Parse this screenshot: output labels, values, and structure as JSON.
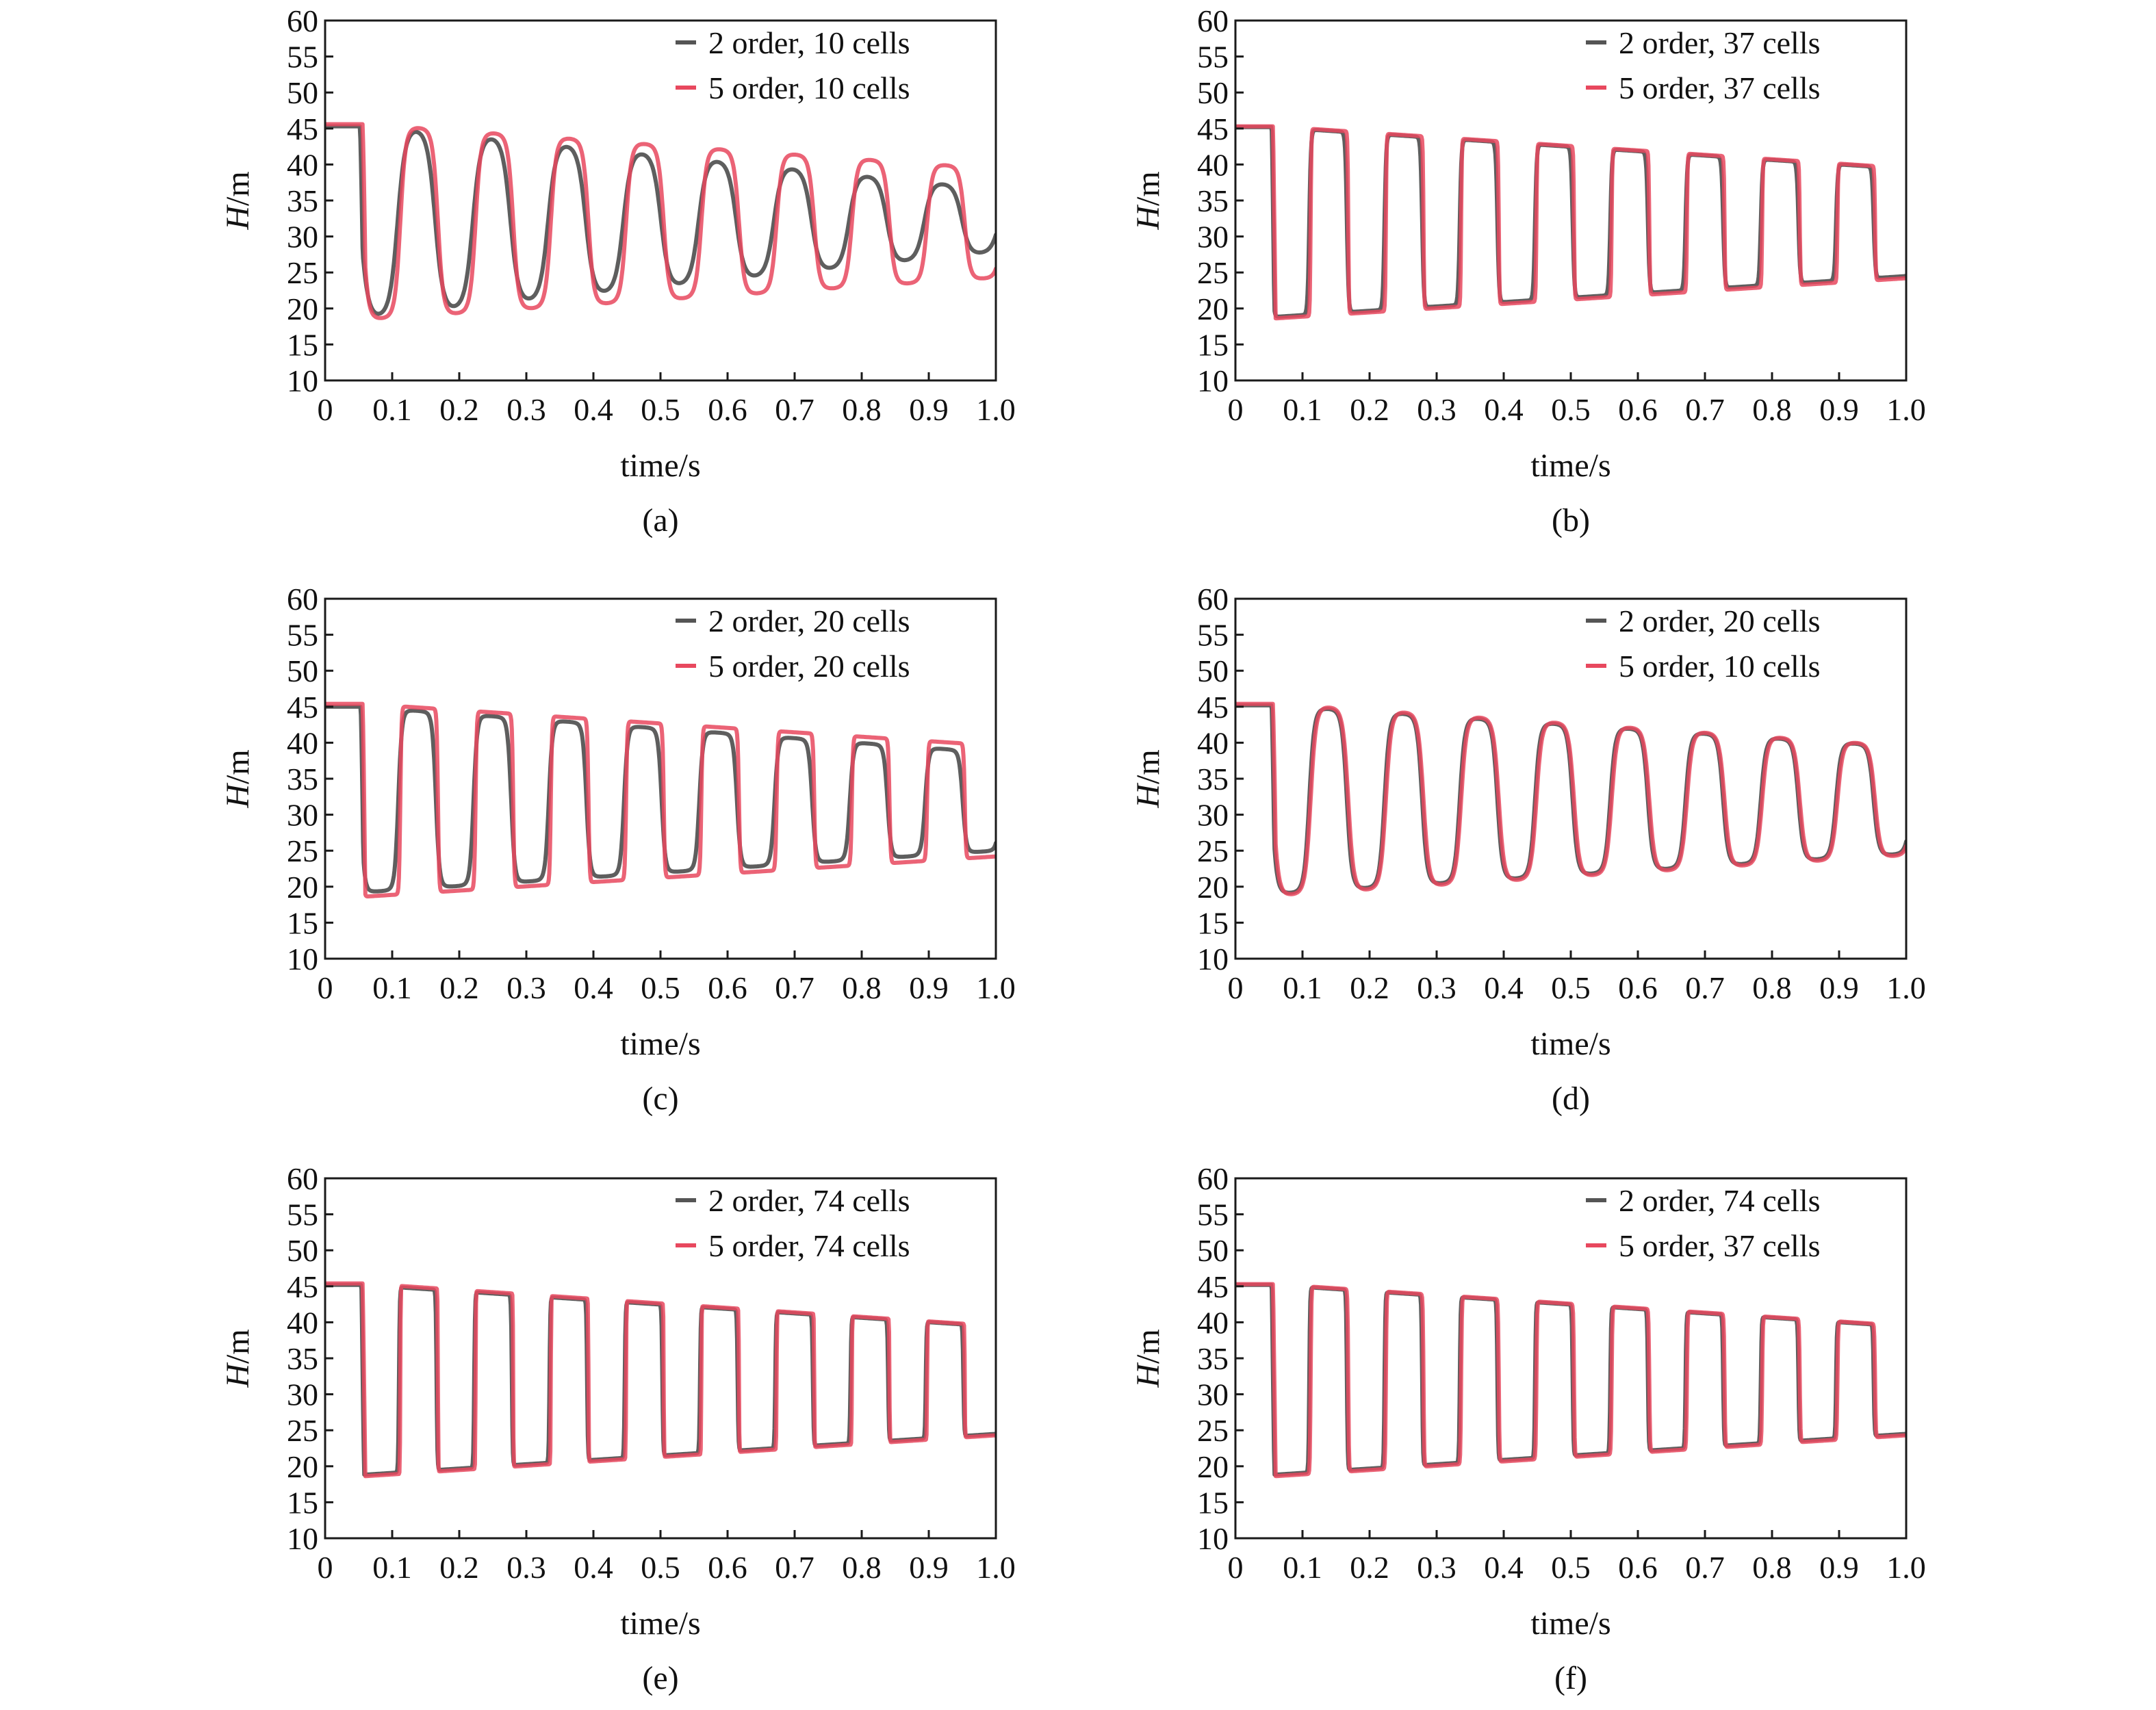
{
  "figure": {
    "colors": {
      "order2": "#555555",
      "order5": "#e8485e"
    }
  },
  "chart_data": [
    {
      "panel": "(a)",
      "type": "line",
      "xlabel": "time/s",
      "ylabel_italic": "H",
      "ylabel_rest": "/m",
      "xlim": [
        0,
        1.0
      ],
      "ylim": [
        10,
        60
      ],
      "xticks": [
        "0",
        "0.1",
        "0.2",
        "0.3",
        "0.4",
        "0.5",
        "0.6",
        "0.7",
        "0.8",
        "0.9",
        "1.0"
      ],
      "yticks": [
        "10",
        "15",
        "20",
        "25",
        "30",
        "35",
        "40",
        "45",
        "50",
        "55",
        "60"
      ],
      "grid": false,
      "legend_position": "top-right",
      "series": [
        {
          "name": "2 order, 10 cells",
          "color": "#555555",
          "smooth": 0.7,
          "period": 0.1122,
          "peak_start": 45.3,
          "peak_end": 36.5,
          "trough_start": 19.0,
          "trough_end": 28.0,
          "lead": 0.004
        },
        {
          "name": "5 order, 10 cells",
          "color": "#e8485e",
          "smooth": 0.45,
          "period": 0.1122,
          "peak_start": 45.6,
          "peak_end": 39.4,
          "trough_start": 18.5,
          "trough_end": 24.3,
          "lead": 0.0
        }
      ]
    },
    {
      "panel": "(b)",
      "type": "line",
      "xlabel": "time/s",
      "ylabel_italic": "H",
      "ylabel_rest": "/m",
      "xlim": [
        0,
        1.0
      ],
      "ylim": [
        10,
        60
      ],
      "xticks": [
        "0",
        "0.1",
        "0.2",
        "0.3",
        "0.4",
        "0.5",
        "0.6",
        "0.7",
        "0.8",
        "0.9",
        "1.0"
      ],
      "yticks": [
        "10",
        "15",
        "20",
        "25",
        "30",
        "35",
        "40",
        "45",
        "50",
        "55",
        "60"
      ],
      "grid": false,
      "legend_position": "top-right",
      "series": [
        {
          "name": "2 order, 37 cells",
          "color": "#555555",
          "smooth": 0.14,
          "period": 0.1122,
          "peak_start": 45.2,
          "peak_end": 39.4,
          "trough_start": 18.8,
          "trough_end": 24.5,
          "lead": 0.002
        },
        {
          "name": "5 order, 37 cells",
          "color": "#e8485e",
          "smooth": 0.06,
          "period": 0.1122,
          "peak_start": 45.3,
          "peak_end": 39.5,
          "trough_start": 18.6,
          "trough_end": 24.2,
          "lead": 0.0
        }
      ]
    },
    {
      "panel": "(c)",
      "type": "line",
      "xlabel": "time/s",
      "ylabel_italic": "H",
      "ylabel_rest": "/m",
      "xlim": [
        0,
        1.0
      ],
      "ylim": [
        10,
        60
      ],
      "xticks": [
        "0",
        "0.1",
        "0.2",
        "0.3",
        "0.4",
        "0.5",
        "0.6",
        "0.7",
        "0.8",
        "0.9",
        "1.0"
      ],
      "yticks": [
        "10",
        "15",
        "20",
        "25",
        "30",
        "35",
        "40",
        "45",
        "50",
        "55",
        "60"
      ],
      "grid": false,
      "legend_position": "top-right",
      "series": [
        {
          "name": "2 order, 20 cells",
          "color": "#555555",
          "smooth": 0.3,
          "period": 0.1122,
          "peak_start": 45.0,
          "peak_end": 38.6,
          "trough_start": 19.2,
          "trough_end": 25.0,
          "lead": 0.003
        },
        {
          "name": "5 order, 20 cells",
          "color": "#e8485e",
          "smooth": 0.1,
          "period": 0.1122,
          "peak_start": 45.4,
          "peak_end": 39.6,
          "trough_start": 18.6,
          "trough_end": 24.2,
          "lead": 0.0
        }
      ]
    },
    {
      "panel": "(d)",
      "type": "line",
      "xlabel": "time/s",
      "ylabel_italic": "H",
      "ylabel_rest": "/m",
      "xlim": [
        0,
        1.0
      ],
      "ylim": [
        10,
        60
      ],
      "xticks": [
        "0",
        "0.1",
        "0.2",
        "0.3",
        "0.4",
        "0.5",
        "0.6",
        "0.7",
        "0.8",
        "0.9",
        "1.0"
      ],
      "yticks": [
        "10",
        "15",
        "20",
        "25",
        "30",
        "35",
        "40",
        "45",
        "50",
        "55",
        "60"
      ],
      "grid": false,
      "legend_position": "top-right",
      "series": [
        {
          "name": "2 order, 20 cells",
          "color": "#555555",
          "smooth": 0.42,
          "period": 0.1122,
          "peak_start": 45.2,
          "peak_end": 39.4,
          "trough_start": 19.0,
          "trough_end": 24.6,
          "lead": 0.002
        },
        {
          "name": "5 order, 10 cells",
          "color": "#e8485e",
          "smooth": 0.45,
          "period": 0.1122,
          "peak_start": 45.4,
          "peak_end": 39.5,
          "trough_start": 18.8,
          "trough_end": 24.4,
          "lead": 0.0
        }
      ]
    },
    {
      "panel": "(e)",
      "type": "line",
      "xlabel": "time/s",
      "ylabel_italic": "H",
      "ylabel_rest": "/m",
      "xlim": [
        0,
        1.0
      ],
      "ylim": [
        10,
        60
      ],
      "xticks": [
        "0",
        "0.1",
        "0.2",
        "0.3",
        "0.4",
        "0.5",
        "0.6",
        "0.7",
        "0.8",
        "0.9",
        "1.0"
      ],
      "yticks": [
        "10",
        "15",
        "20",
        "25",
        "30",
        "35",
        "40",
        "45",
        "50",
        "55",
        "60"
      ],
      "grid": false,
      "legend_position": "top-right",
      "series": [
        {
          "name": "2 order, 74 cells",
          "color": "#555555",
          "smooth": 0.07,
          "period": 0.1122,
          "peak_start": 45.2,
          "peak_end": 39.4,
          "trough_start": 18.8,
          "trough_end": 24.5,
          "lead": 0.002
        },
        {
          "name": "5 order, 74 cells",
          "color": "#e8485e",
          "smooth": 0.03,
          "period": 0.1122,
          "peak_start": 45.4,
          "peak_end": 39.5,
          "trough_start": 18.6,
          "trough_end": 24.3,
          "lead": 0.0
        }
      ]
    },
    {
      "panel": "(f)",
      "type": "line",
      "xlabel": "time/s",
      "ylabel_italic": "H",
      "ylabel_rest": "/m",
      "xlim": [
        0,
        1.0
      ],
      "ylim": [
        10,
        60
      ],
      "xticks": [
        "0",
        "0.1",
        "0.2",
        "0.3",
        "0.4",
        "0.5",
        "0.6",
        "0.7",
        "0.8",
        "0.9",
        "1.0"
      ],
      "yticks": [
        "10",
        "15",
        "20",
        "25",
        "30",
        "35",
        "40",
        "45",
        "50",
        "55",
        "60"
      ],
      "grid": false,
      "legend_position": "top-right",
      "series": [
        {
          "name": "2 order, 74 cells",
          "color": "#555555",
          "smooth": 0.07,
          "period": 0.1122,
          "peak_start": 45.2,
          "peak_end": 39.4,
          "trough_start": 18.8,
          "trough_end": 24.5,
          "lead": 0.002
        },
        {
          "name": "5 order, 37 cells",
          "color": "#e8485e",
          "smooth": 0.06,
          "period": 0.1122,
          "peak_start": 45.3,
          "peak_end": 39.5,
          "trough_start": 18.6,
          "trough_end": 24.3,
          "lead": 0.0
        }
      ]
    }
  ]
}
